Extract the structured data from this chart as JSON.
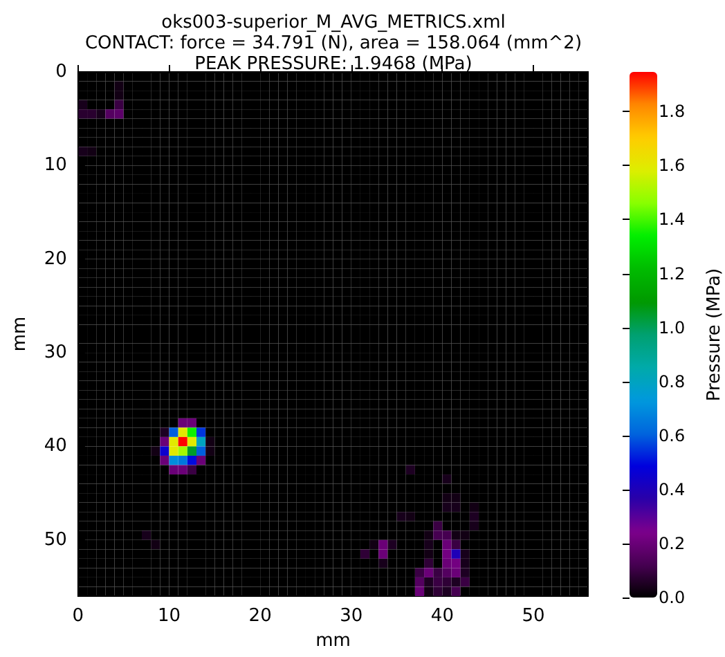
{
  "chart_data": {
    "type": "heatmap",
    "title": "oks003-superior_M_AVG_METRICS.xml\nCONTACT: force = 34.791 (N), area = 158.064 (mm^2)\nPEAK PRESSURE: 1.9468 (MPa)",
    "xlabel": "mm",
    "ylabel": "mm",
    "clabel": "Pressure (MPa)",
    "xlim": [
      0,
      56
    ],
    "ylim": [
      56,
      0
    ],
    "xticks": [
      0,
      10,
      20,
      30,
      40,
      50
    ],
    "yticks": [
      0,
      10,
      20,
      30,
      40,
      50
    ],
    "clim": [
      0,
      1.9468
    ],
    "cticks": [
      {
        "value": 0,
        "label": "0.0"
      },
      0.2,
      0.4,
      0.6,
      0.8,
      {
        "value": 1,
        "label": "1.0"
      },
      1.2,
      1.4,
      1.6,
      1.8
    ],
    "cells": [
      [
        0,
        0,
        0,
        0,
        0,
        0,
        0,
        0,
        0,
        0,
        0,
        0,
        0,
        0,
        0,
        0,
        0,
        0,
        0,
        0,
        0,
        0,
        0,
        0,
        0,
        0,
        0,
        0,
        0,
        0,
        0,
        0,
        0,
        0,
        0,
        0,
        0,
        0,
        0,
        0,
        0,
        0,
        0,
        0,
        0,
        0,
        0,
        0,
        0,
        0,
        0,
        0,
        0,
        0,
        0,
        0
      ],
      [
        0,
        0,
        0,
        0,
        0.03,
        0,
        0,
        0,
        0,
        0,
        0,
        0,
        0,
        0,
        0,
        0,
        0,
        0,
        0,
        0,
        0,
        0,
        0,
        0,
        0,
        0,
        0,
        0,
        0,
        0,
        0,
        0,
        0,
        0,
        0,
        0,
        0,
        0,
        0,
        0,
        0,
        0,
        0,
        0,
        0,
        0,
        0,
        0,
        0,
        0,
        0,
        0,
        0,
        0,
        0,
        0
      ],
      [
        0,
        0,
        0,
        0,
        0.03,
        0,
        0,
        0,
        0,
        0,
        0,
        0,
        0,
        0,
        0,
        0,
        0,
        0,
        0,
        0,
        0,
        0,
        0,
        0,
        0,
        0,
        0,
        0,
        0,
        0,
        0,
        0,
        0,
        0,
        0,
        0,
        0,
        0,
        0,
        0,
        0,
        0,
        0,
        0,
        0,
        0,
        0,
        0,
        0,
        0,
        0,
        0,
        0,
        0,
        0,
        0
      ],
      [
        0.04,
        0,
        0,
        0,
        0.1,
        0,
        0,
        0,
        0,
        0,
        0,
        0,
        0,
        0,
        0,
        0,
        0,
        0,
        0,
        0,
        0,
        0,
        0,
        0,
        0,
        0,
        0,
        0,
        0,
        0,
        0,
        0,
        0,
        0,
        0,
        0,
        0,
        0,
        0,
        0,
        0,
        0,
        0,
        0,
        0,
        0,
        0,
        0,
        0,
        0,
        0,
        0,
        0,
        0,
        0,
        0
      ],
      [
        0.07,
        0.07,
        0.04,
        0.15,
        0.17,
        0,
        0,
        0,
        0,
        0,
        0,
        0,
        0,
        0,
        0,
        0,
        0,
        0,
        0,
        0,
        0,
        0,
        0,
        0,
        0,
        0,
        0,
        0,
        0,
        0,
        0,
        0,
        0,
        0,
        0,
        0,
        0,
        0,
        0,
        0,
        0,
        0,
        0,
        0,
        0,
        0,
        0,
        0,
        0,
        0,
        0,
        0,
        0,
        0,
        0,
        0
      ],
      [
        0,
        0,
        0,
        0,
        0,
        0,
        0,
        0,
        0,
        0,
        0,
        0,
        0,
        0,
        0,
        0,
        0,
        0,
        0,
        0,
        0,
        0,
        0,
        0,
        0,
        0,
        0,
        0,
        0,
        0,
        0,
        0,
        0,
        0,
        0,
        0,
        0,
        0,
        0,
        0,
        0,
        0,
        0,
        0,
        0,
        0,
        0,
        0,
        0,
        0,
        0,
        0,
        0,
        0,
        0,
        0
      ],
      [
        0,
        0,
        0,
        0,
        0,
        0,
        0,
        0,
        0,
        0,
        0,
        0,
        0,
        0,
        0,
        0,
        0,
        0,
        0,
        0,
        0,
        0,
        0,
        0,
        0,
        0,
        0,
        0,
        0,
        0,
        0,
        0,
        0,
        0,
        0,
        0,
        0,
        0,
        0,
        0,
        0,
        0,
        0,
        0,
        0,
        0,
        0,
        0,
        0,
        0,
        0,
        0,
        0,
        0,
        0,
        0
      ],
      [
        0,
        0,
        0,
        0,
        0,
        0,
        0,
        0,
        0,
        0,
        0,
        0,
        0,
        0,
        0,
        0,
        0,
        0,
        0,
        0,
        0,
        0,
        0,
        0,
        0,
        0,
        0,
        0,
        0,
        0,
        0,
        0,
        0,
        0,
        0,
        0,
        0,
        0,
        0,
        0,
        0,
        0,
        0,
        0,
        0,
        0,
        0,
        0,
        0,
        0,
        0,
        0,
        0,
        0,
        0,
        0
      ],
      [
        0.04,
        0.03,
        0,
        0,
        0,
        0,
        0,
        0,
        0,
        0,
        0,
        0,
        0,
        0,
        0,
        0,
        0,
        0,
        0,
        0,
        0,
        0,
        0,
        0,
        0,
        0,
        0,
        0,
        0,
        0,
        0,
        0,
        0,
        0,
        0,
        0,
        0,
        0,
        0,
        0,
        0,
        0,
        0,
        0,
        0,
        0,
        0,
        0,
        0,
        0,
        0,
        0,
        0,
        0,
        0,
        0
      ],
      [
        0,
        0,
        0,
        0,
        0,
        0,
        0,
        0,
        0,
        0,
        0,
        0,
        0,
        0,
        0,
        0,
        0,
        0,
        0,
        0,
        0,
        0,
        0,
        0,
        0,
        0,
        0,
        0,
        0,
        0,
        0,
        0,
        0,
        0,
        0,
        0,
        0,
        0,
        0,
        0,
        0,
        0,
        0,
        0,
        0,
        0,
        0,
        0,
        0,
        0,
        0,
        0,
        0,
        0,
        0,
        0
      ],
      [
        0,
        0,
        0,
        0,
        0,
        0,
        0,
        0,
        0,
        0,
        0,
        0,
        0,
        0,
        0,
        0,
        0,
        0,
        0,
        0,
        0,
        0,
        0,
        0,
        0,
        0,
        0,
        0,
        0,
        0,
        0,
        0,
        0,
        0,
        0,
        0,
        0,
        0,
        0,
        0,
        0,
        0,
        0,
        0,
        0,
        0,
        0,
        0,
        0,
        0,
        0,
        0,
        0,
        0,
        0,
        0
      ],
      [
        0,
        0,
        0,
        0,
        0,
        0,
        0,
        0,
        0,
        0,
        0,
        0,
        0,
        0,
        0,
        0,
        0,
        0,
        0,
        0,
        0,
        0,
        0,
        0,
        0,
        0,
        0,
        0,
        0,
        0,
        0,
        0,
        0,
        0,
        0,
        0,
        0,
        0,
        0,
        0,
        0,
        0,
        0,
        0,
        0,
        0,
        0,
        0,
        0,
        0,
        0,
        0,
        0,
        0,
        0,
        0
      ],
      [
        0,
        0,
        0,
        0,
        0,
        0,
        0,
        0,
        0,
        0,
        0,
        0,
        0,
        0,
        0,
        0,
        0,
        0,
        0,
        0,
        0,
        0,
        0,
        0,
        0,
        0,
        0,
        0,
        0,
        0,
        0,
        0,
        0,
        0,
        0,
        0,
        0,
        0,
        0,
        0,
        0,
        0,
        0,
        0,
        0,
        0,
        0,
        0,
        0,
        0,
        0,
        0,
        0,
        0,
        0,
        0
      ],
      [
        0,
        0,
        0,
        0,
        0,
        0,
        0,
        0,
        0,
        0,
        0,
        0,
        0,
        0,
        0,
        0,
        0,
        0,
        0,
        0,
        0,
        0,
        0,
        0,
        0,
        0,
        0,
        0,
        0,
        0,
        0,
        0,
        0,
        0,
        0,
        0,
        0,
        0,
        0,
        0,
        0,
        0,
        0,
        0,
        0,
        0,
        0,
        0,
        0,
        0,
        0,
        0,
        0,
        0,
        0,
        0
      ],
      [
        0,
        0,
        0,
        0,
        0,
        0,
        0,
        0,
        0,
        0,
        0,
        0,
        0,
        0,
        0,
        0,
        0,
        0,
        0,
        0,
        0,
        0,
        0,
        0,
        0,
        0,
        0,
        0,
        0,
        0,
        0,
        0,
        0,
        0,
        0,
        0,
        0,
        0,
        0,
        0,
        0,
        0,
        0,
        0,
        0,
        0,
        0,
        0,
        0,
        0,
        0,
        0,
        0,
        0,
        0,
        0
      ],
      [
        0,
        0,
        0,
        0,
        0,
        0,
        0,
        0,
        0,
        0,
        0,
        0,
        0,
        0,
        0,
        0,
        0,
        0,
        0,
        0,
        0,
        0,
        0,
        0,
        0,
        0,
        0,
        0,
        0,
        0,
        0,
        0,
        0,
        0,
        0,
        0,
        0,
        0,
        0,
        0,
        0,
        0,
        0,
        0,
        0,
        0,
        0,
        0,
        0,
        0,
        0,
        0,
        0,
        0,
        0,
        0
      ],
      [
        0,
        0,
        0,
        0,
        0,
        0,
        0,
        0,
        0,
        0,
        0,
        0,
        0,
        0,
        0,
        0,
        0,
        0,
        0,
        0,
        0,
        0,
        0,
        0,
        0,
        0,
        0,
        0,
        0,
        0,
        0,
        0,
        0,
        0,
        0,
        0,
        0,
        0,
        0,
        0,
        0,
        0,
        0,
        0,
        0,
        0,
        0,
        0,
        0,
        0,
        0,
        0,
        0,
        0,
        0,
        0
      ],
      [
        0,
        0,
        0,
        0,
        0,
        0,
        0,
        0,
        0,
        0,
        0,
        0,
        0,
        0,
        0,
        0,
        0,
        0,
        0,
        0,
        0,
        0,
        0,
        0,
        0,
        0,
        0,
        0,
        0,
        0,
        0,
        0,
        0,
        0,
        0,
        0,
        0,
        0,
        0,
        0,
        0,
        0,
        0,
        0,
        0,
        0,
        0,
        0,
        0,
        0,
        0,
        0,
        0,
        0,
        0,
        0
      ],
      [
        0,
        0,
        0,
        0,
        0,
        0,
        0,
        0,
        0,
        0,
        0,
        0,
        0,
        0,
        0,
        0,
        0,
        0,
        0,
        0,
        0,
        0,
        0,
        0,
        0,
        0,
        0,
        0,
        0,
        0,
        0,
        0,
        0,
        0,
        0,
        0,
        0,
        0,
        0,
        0,
        0,
        0,
        0,
        0,
        0,
        0,
        0,
        0,
        0,
        0,
        0,
        0,
        0,
        0,
        0,
        0
      ],
      [
        0,
        0,
        0,
        0,
        0,
        0,
        0,
        0,
        0,
        0,
        0,
        0,
        0,
        0,
        0,
        0,
        0,
        0,
        0,
        0,
        0,
        0,
        0,
        0,
        0,
        0,
        0,
        0,
        0,
        0,
        0,
        0,
        0,
        0,
        0,
        0,
        0,
        0,
        0,
        0,
        0,
        0,
        0,
        0,
        0,
        0,
        0,
        0,
        0,
        0,
        0,
        0,
        0,
        0,
        0,
        0
      ],
      [
        0,
        0,
        0,
        0,
        0,
        0,
        0,
        0,
        0,
        0,
        0,
        0,
        0,
        0,
        0,
        0,
        0,
        0,
        0,
        0,
        0,
        0,
        0,
        0,
        0,
        0,
        0,
        0,
        0,
        0,
        0,
        0,
        0,
        0,
        0,
        0,
        0,
        0,
        0,
        0,
        0,
        0,
        0,
        0,
        0,
        0,
        0,
        0,
        0,
        0,
        0,
        0,
        0,
        0,
        0,
        0
      ],
      [
        0,
        0,
        0,
        0,
        0,
        0,
        0,
        0,
        0,
        0,
        0,
        0,
        0,
        0,
        0,
        0,
        0,
        0,
        0,
        0,
        0,
        0,
        0,
        0,
        0,
        0,
        0,
        0,
        0,
        0,
        0,
        0,
        0,
        0,
        0,
        0,
        0,
        0,
        0,
        0,
        0,
        0,
        0,
        0,
        0,
        0,
        0,
        0,
        0,
        0,
        0,
        0,
        0,
        0,
        0,
        0
      ],
      [
        0,
        0,
        0,
        0,
        0,
        0,
        0,
        0,
        0,
        0,
        0,
        0,
        0,
        0,
        0,
        0,
        0,
        0,
        0,
        0,
        0,
        0,
        0,
        0,
        0,
        0,
        0,
        0,
        0,
        0,
        0,
        0,
        0,
        0,
        0,
        0,
        0,
        0,
        0,
        0,
        0,
        0,
        0,
        0,
        0,
        0,
        0,
        0,
        0,
        0,
        0,
        0,
        0,
        0,
        0,
        0
      ],
      [
        0,
        0,
        0,
        0,
        0,
        0,
        0,
        0,
        0,
        0,
        0,
        0,
        0,
        0,
        0,
        0,
        0,
        0,
        0,
        0,
        0,
        0,
        0,
        0,
        0,
        0,
        0,
        0,
        0,
        0,
        0,
        0,
        0,
        0,
        0,
        0,
        0,
        0,
        0,
        0,
        0,
        0,
        0,
        0,
        0,
        0,
        0,
        0,
        0,
        0,
        0,
        0,
        0,
        0,
        0,
        0
      ],
      [
        0,
        0,
        0,
        0,
        0,
        0,
        0,
        0,
        0,
        0,
        0,
        0,
        0,
        0,
        0,
        0,
        0,
        0,
        0,
        0,
        0,
        0,
        0,
        0,
        0,
        0,
        0,
        0,
        0,
        0,
        0,
        0,
        0,
        0,
        0,
        0,
        0,
        0,
        0,
        0,
        0,
        0,
        0,
        0,
        0,
        0,
        0,
        0,
        0,
        0,
        0,
        0,
        0,
        0,
        0,
        0
      ],
      [
        0,
        0,
        0,
        0,
        0,
        0,
        0,
        0,
        0,
        0,
        0,
        0,
        0,
        0,
        0,
        0,
        0,
        0,
        0,
        0,
        0,
        0,
        0,
        0,
        0,
        0,
        0,
        0,
        0,
        0,
        0,
        0,
        0,
        0,
        0,
        0,
        0,
        0,
        0,
        0,
        0,
        0,
        0,
        0,
        0,
        0,
        0,
        0,
        0,
        0,
        0,
        0,
        0,
        0,
        0,
        0
      ],
      [
        0,
        0,
        0,
        0,
        0,
        0,
        0,
        0,
        0,
        0,
        0,
        0,
        0,
        0,
        0,
        0,
        0,
        0,
        0,
        0,
        0,
        0,
        0,
        0,
        0,
        0,
        0,
        0,
        0,
        0,
        0,
        0,
        0,
        0,
        0,
        0,
        0,
        0,
        0,
        0,
        0,
        0,
        0,
        0,
        0,
        0,
        0,
        0,
        0,
        0,
        0,
        0,
        0,
        0,
        0,
        0
      ],
      [
        0,
        0,
        0,
        0,
        0,
        0,
        0,
        0,
        0,
        0,
        0,
        0,
        0,
        0,
        0,
        0,
        0,
        0,
        0,
        0,
        0,
        0,
        0,
        0,
        0,
        0,
        0,
        0,
        0,
        0,
        0,
        0,
        0,
        0,
        0,
        0,
        0,
        0,
        0,
        0,
        0,
        0,
        0,
        0,
        0,
        0,
        0,
        0,
        0,
        0,
        0,
        0,
        0,
        0,
        0,
        0
      ],
      [
        0,
        0,
        0,
        0,
        0,
        0,
        0,
        0,
        0,
        0,
        0,
        0,
        0,
        0,
        0,
        0,
        0,
        0,
        0,
        0,
        0,
        0,
        0,
        0,
        0,
        0,
        0,
        0,
        0,
        0,
        0,
        0,
        0,
        0,
        0,
        0,
        0,
        0,
        0,
        0,
        0,
        0,
        0,
        0,
        0,
        0,
        0,
        0,
        0,
        0,
        0,
        0,
        0,
        0,
        0,
        0
      ],
      [
        0,
        0,
        0,
        0,
        0,
        0,
        0,
        0,
        0,
        0,
        0,
        0,
        0,
        0,
        0,
        0,
        0,
        0,
        0,
        0,
        0,
        0,
        0,
        0,
        0,
        0,
        0,
        0,
        0,
        0,
        0,
        0,
        0,
        0,
        0,
        0,
        0,
        0,
        0,
        0,
        0,
        0,
        0,
        0,
        0,
        0,
        0,
        0,
        0,
        0,
        0,
        0,
        0,
        0,
        0,
        0
      ],
      [
        0,
        0,
        0,
        0,
        0,
        0,
        0,
        0,
        0,
        0,
        0,
        0,
        0,
        0,
        0,
        0,
        0,
        0,
        0,
        0,
        0,
        0,
        0,
        0,
        0,
        0,
        0,
        0,
        0,
        0,
        0,
        0,
        0,
        0,
        0,
        0,
        0,
        0,
        0,
        0,
        0,
        0,
        0,
        0,
        0,
        0,
        0,
        0,
        0,
        0,
        0,
        0,
        0,
        0,
        0,
        0
      ],
      [
        0,
        0,
        0,
        0,
        0,
        0,
        0,
        0,
        0,
        0,
        0,
        0,
        0,
        0,
        0,
        0,
        0,
        0,
        0,
        0,
        0,
        0,
        0,
        0,
        0,
        0,
        0,
        0,
        0,
        0,
        0,
        0,
        0,
        0,
        0,
        0,
        0,
        0,
        0,
        0,
        0,
        0,
        0,
        0,
        0,
        0,
        0,
        0,
        0,
        0,
        0,
        0,
        0,
        0,
        0,
        0
      ],
      [
        0,
        0,
        0,
        0,
        0,
        0,
        0,
        0,
        0,
        0,
        0,
        0,
        0,
        0,
        0,
        0,
        0,
        0,
        0,
        0,
        0,
        0,
        0,
        0,
        0,
        0,
        0,
        0,
        0,
        0,
        0,
        0,
        0,
        0,
        0,
        0,
        0,
        0,
        0,
        0,
        0,
        0,
        0,
        0,
        0,
        0,
        0,
        0,
        0,
        0,
        0,
        0,
        0,
        0,
        0,
        0
      ],
      [
        0,
        0,
        0,
        0,
        0,
        0,
        0,
        0,
        0,
        0,
        0,
        0,
        0,
        0,
        0,
        0,
        0,
        0,
        0,
        0,
        0,
        0,
        0,
        0,
        0,
        0,
        0,
        0,
        0,
        0,
        0,
        0,
        0,
        0,
        0,
        0,
        0,
        0,
        0,
        0,
        0,
        0,
        0,
        0,
        0,
        0,
        0,
        0,
        0,
        0,
        0,
        0,
        0,
        0,
        0,
        0
      ],
      [
        0,
        0,
        0,
        0,
        0,
        0,
        0,
        0,
        0,
        0,
        0,
        0,
        0,
        0,
        0,
        0,
        0,
        0,
        0,
        0,
        0,
        0,
        0,
        0,
        0,
        0,
        0,
        0,
        0,
        0,
        0,
        0,
        0,
        0,
        0,
        0,
        0,
        0,
        0,
        0,
        0,
        0,
        0,
        0,
        0,
        0,
        0,
        0,
        0,
        0,
        0,
        0,
        0,
        0,
        0,
        0
      ],
      [
        0,
        0,
        0,
        0,
        0,
        0,
        0,
        0,
        0,
        0,
        0,
        0,
        0,
        0,
        0,
        0,
        0,
        0,
        0,
        0,
        0,
        0,
        0,
        0,
        0,
        0,
        0,
        0,
        0,
        0,
        0,
        0,
        0,
        0,
        0,
        0,
        0,
        0,
        0,
        0,
        0,
        0,
        0,
        0,
        0,
        0,
        0,
        0,
        0,
        0,
        0,
        0,
        0,
        0,
        0,
        0
      ],
      [
        0,
        0,
        0,
        0,
        0,
        0,
        0,
        0,
        0,
        0,
        0,
        0,
        0,
        0,
        0,
        0,
        0,
        0,
        0,
        0,
        0,
        0,
        0,
        0,
        0,
        0,
        0,
        0,
        0,
        0,
        0,
        0,
        0,
        0,
        0,
        0,
        0,
        0,
        0,
        0,
        0,
        0,
        0,
        0,
        0,
        0,
        0,
        0,
        0,
        0,
        0,
        0,
        0,
        0,
        0,
        0
      ],
      [
        0,
        0,
        0,
        0,
        0,
        0,
        0,
        0,
        0,
        0,
        0,
        0.2,
        0.2,
        0,
        0,
        0,
        0,
        0,
        0,
        0,
        0,
        0,
        0,
        0,
        0,
        0,
        0,
        0,
        0,
        0,
        0,
        0,
        0,
        0,
        0,
        0,
        0,
        0,
        0,
        0,
        0,
        0,
        0,
        0,
        0,
        0,
        0,
        0,
        0,
        0,
        0,
        0,
        0,
        0,
        0,
        0
      ],
      [
        0,
        0,
        0,
        0,
        0,
        0,
        0,
        0,
        0,
        0.05,
        0.6,
        1.6,
        1.35,
        0.55,
        0,
        0,
        0,
        0,
        0,
        0,
        0,
        0,
        0,
        0,
        0,
        0,
        0,
        0,
        0,
        0,
        0,
        0,
        0,
        0,
        0,
        0,
        0,
        0,
        0,
        0,
        0,
        0,
        0,
        0,
        0,
        0,
        0,
        0,
        0,
        0,
        0,
        0,
        0,
        0,
        0,
        0
      ],
      [
        0,
        0,
        0,
        0,
        0,
        0,
        0,
        0,
        0,
        0.2,
        1.6,
        1.9468,
        1.6,
        0.8,
        0.03,
        0,
        0,
        0,
        0,
        0,
        0,
        0,
        0,
        0,
        0,
        0,
        0,
        0,
        0,
        0,
        0,
        0,
        0,
        0,
        0,
        0,
        0,
        0,
        0,
        0,
        0,
        0,
        0,
        0,
        0,
        0,
        0,
        0,
        0,
        0,
        0,
        0,
        0,
        0,
        0,
        0
      ],
      [
        0,
        0,
        0,
        0,
        0,
        0,
        0,
        0,
        0.03,
        0.45,
        1.6,
        1.5,
        1.05,
        0.6,
        0.03,
        0,
        0,
        0,
        0,
        0,
        0,
        0,
        0,
        0,
        0,
        0,
        0,
        0,
        0,
        0,
        0,
        0,
        0,
        0,
        0,
        0,
        0,
        0,
        0,
        0,
        0,
        0,
        0,
        0,
        0,
        0,
        0,
        0,
        0,
        0,
        0,
        0,
        0,
        0,
        0,
        0
      ],
      [
        0,
        0,
        0,
        0,
        0,
        0,
        0,
        0,
        0,
        0.2,
        0.7,
        0.65,
        0.5,
        0.2,
        0,
        0,
        0,
        0,
        0,
        0,
        0,
        0,
        0,
        0,
        0,
        0,
        0,
        0,
        0,
        0,
        0,
        0,
        0,
        0,
        0,
        0,
        0,
        0,
        0,
        0,
        0,
        0,
        0,
        0,
        0,
        0,
        0,
        0,
        0,
        0,
        0,
        0,
        0,
        0,
        0,
        0
      ],
      [
        0,
        0,
        0,
        0,
        0,
        0,
        0,
        0,
        0,
        0,
        0.2,
        0.2,
        0.1,
        0,
        0,
        0,
        0,
        0,
        0,
        0,
        0,
        0,
        0,
        0,
        0,
        0,
        0,
        0,
        0,
        0,
        0,
        0,
        0,
        0,
        0,
        0,
        0.05,
        0,
        0,
        0,
        0,
        0,
        0,
        0,
        0,
        0,
        0,
        0,
        0,
        0,
        0,
        0,
        0,
        0,
        0,
        0
      ],
      [
        0,
        0,
        0,
        0,
        0,
        0,
        0,
        0,
        0,
        0,
        0,
        0,
        0,
        0,
        0,
        0,
        0,
        0,
        0,
        0,
        0,
        0,
        0,
        0,
        0,
        0,
        0,
        0,
        0,
        0,
        0,
        0,
        0,
        0,
        0,
        0,
        0,
        0,
        0,
        0,
        0.04,
        0,
        0,
        0,
        0,
        0,
        0,
        0,
        0,
        0,
        0,
        0,
        0,
        0,
        0,
        0
      ],
      [
        0,
        0,
        0,
        0,
        0,
        0,
        0,
        0,
        0,
        0,
        0,
        0,
        0,
        0,
        0,
        0,
        0,
        0,
        0,
        0,
        0,
        0,
        0,
        0,
        0,
        0,
        0,
        0,
        0,
        0,
        0,
        0,
        0,
        0,
        0,
        0,
        0,
        0,
        0,
        0,
        0,
        0,
        0,
        0,
        0,
        0,
        0,
        0,
        0,
        0,
        0,
        0,
        0,
        0,
        0,
        0
      ],
      [
        0,
        0,
        0,
        0,
        0,
        0,
        0,
        0,
        0,
        0,
        0,
        0,
        0,
        0,
        0,
        0,
        0,
        0,
        0,
        0,
        0,
        0,
        0,
        0,
        0,
        0,
        0,
        0,
        0,
        0,
        0,
        0,
        0,
        0,
        0,
        0,
        0,
        0,
        0,
        0,
        0.03,
        0.03,
        0,
        0,
        0,
        0,
        0,
        0,
        0,
        0,
        0,
        0,
        0,
        0,
        0,
        0
      ],
      [
        0,
        0,
        0,
        0,
        0,
        0,
        0,
        0,
        0,
        0,
        0,
        0,
        0,
        0,
        0,
        0,
        0,
        0,
        0,
        0,
        0,
        0,
        0,
        0,
        0,
        0,
        0,
        0,
        0,
        0,
        0,
        0,
        0,
        0,
        0,
        0,
        0,
        0,
        0,
        0,
        0.04,
        0.04,
        0,
        0.03,
        0,
        0,
        0,
        0,
        0,
        0,
        0,
        0,
        0,
        0,
        0,
        0
      ],
      [
        0,
        0,
        0,
        0,
        0,
        0,
        0,
        0,
        0,
        0,
        0,
        0,
        0,
        0,
        0,
        0,
        0,
        0,
        0,
        0,
        0,
        0,
        0,
        0,
        0,
        0,
        0,
        0,
        0,
        0,
        0,
        0,
        0,
        0,
        0,
        0.04,
        0.03,
        0,
        0,
        0,
        0,
        0,
        0,
        0.05,
        0,
        0,
        0,
        0,
        0,
        0,
        0,
        0,
        0,
        0,
        0,
        0
      ],
      [
        0,
        0,
        0,
        0,
        0,
        0,
        0,
        0,
        0,
        0,
        0,
        0,
        0,
        0,
        0,
        0,
        0,
        0,
        0,
        0,
        0,
        0,
        0,
        0,
        0,
        0,
        0,
        0,
        0,
        0,
        0,
        0,
        0,
        0,
        0,
        0,
        0,
        0,
        0,
        0.1,
        0,
        0,
        0,
        0.04,
        0,
        0,
        0,
        0,
        0,
        0,
        0,
        0,
        0,
        0,
        0,
        0
      ],
      [
        0,
        0,
        0,
        0,
        0,
        0,
        0,
        0.04,
        0,
        0,
        0,
        0,
        0,
        0,
        0,
        0,
        0,
        0,
        0,
        0,
        0,
        0,
        0,
        0,
        0,
        0,
        0,
        0,
        0,
        0,
        0,
        0,
        0,
        0,
        0,
        0,
        0,
        0,
        0.03,
        0.12,
        0.12,
        0.03,
        0.03,
        0,
        0,
        0,
        0,
        0,
        0,
        0,
        0,
        0,
        0,
        0,
        0,
        0
      ],
      [
        0,
        0,
        0,
        0,
        0,
        0,
        0,
        0,
        0.03,
        0,
        0,
        0,
        0,
        0,
        0,
        0,
        0,
        0,
        0,
        0,
        0,
        0,
        0,
        0,
        0,
        0,
        0,
        0,
        0,
        0,
        0,
        0,
        0.03,
        0.2,
        0.05,
        0,
        0,
        0,
        0.04,
        0,
        0.2,
        0.1,
        0,
        0,
        0,
        0,
        0,
        0,
        0,
        0,
        0,
        0,
        0,
        0,
        0,
        0
      ],
      [
        0,
        0,
        0,
        0,
        0,
        0,
        0,
        0,
        0,
        0,
        0,
        0,
        0,
        0,
        0,
        0,
        0,
        0,
        0,
        0,
        0,
        0,
        0,
        0,
        0,
        0,
        0,
        0,
        0,
        0,
        0,
        0.08,
        0,
        0.2,
        0,
        0,
        0,
        0,
        0.03,
        0,
        0.22,
        0.4,
        0.04,
        0,
        0,
        0,
        0,
        0,
        0,
        0,
        0,
        0,
        0,
        0,
        0,
        0
      ],
      [
        0,
        0,
        0,
        0,
        0,
        0,
        0,
        0,
        0,
        0,
        0,
        0,
        0,
        0,
        0,
        0,
        0,
        0,
        0,
        0,
        0,
        0,
        0,
        0,
        0,
        0,
        0,
        0,
        0,
        0,
        0,
        0,
        0,
        0.04,
        0,
        0,
        0,
        0,
        0.08,
        0,
        0.2,
        0.22,
        0.04,
        0,
        0,
        0,
        0,
        0,
        0,
        0,
        0,
        0,
        0,
        0,
        0,
        0
      ],
      [
        0,
        0,
        0,
        0,
        0,
        0,
        0,
        0,
        0,
        0,
        0,
        0,
        0,
        0,
        0,
        0,
        0,
        0,
        0,
        0,
        0,
        0,
        0,
        0,
        0,
        0,
        0,
        0,
        0,
        0,
        0,
        0,
        0,
        0,
        0,
        0,
        0,
        0.1,
        0.2,
        0.1,
        0.15,
        0.2,
        0.05,
        0,
        0,
        0,
        0,
        0,
        0,
        0,
        0,
        0,
        0,
        0,
        0,
        0
      ],
      [
        0,
        0,
        0,
        0,
        0,
        0,
        0,
        0,
        0,
        0,
        0,
        0,
        0,
        0,
        0,
        0,
        0,
        0,
        0,
        0,
        0,
        0,
        0,
        0,
        0,
        0,
        0,
        0,
        0,
        0,
        0,
        0,
        0,
        0,
        0,
        0,
        0,
        0.15,
        0.05,
        0.1,
        0.08,
        0.05,
        0.1,
        0,
        0,
        0,
        0,
        0,
        0,
        0,
        0,
        0,
        0,
        0,
        0,
        0
      ],
      [
        0,
        0,
        0,
        0,
        0,
        0,
        0,
        0,
        0,
        0,
        0,
        0,
        0,
        0,
        0,
        0,
        0,
        0,
        0,
        0,
        0,
        0,
        0,
        0,
        0,
        0,
        0,
        0,
        0,
        0,
        0,
        0,
        0,
        0,
        0,
        0,
        0,
        0.2,
        0.03,
        0.08,
        0.05,
        0.12,
        0,
        0,
        0,
        0,
        0,
        0,
        0,
        0,
        0,
        0,
        0,
        0,
        0,
        0
      ]
    ]
  }
}
